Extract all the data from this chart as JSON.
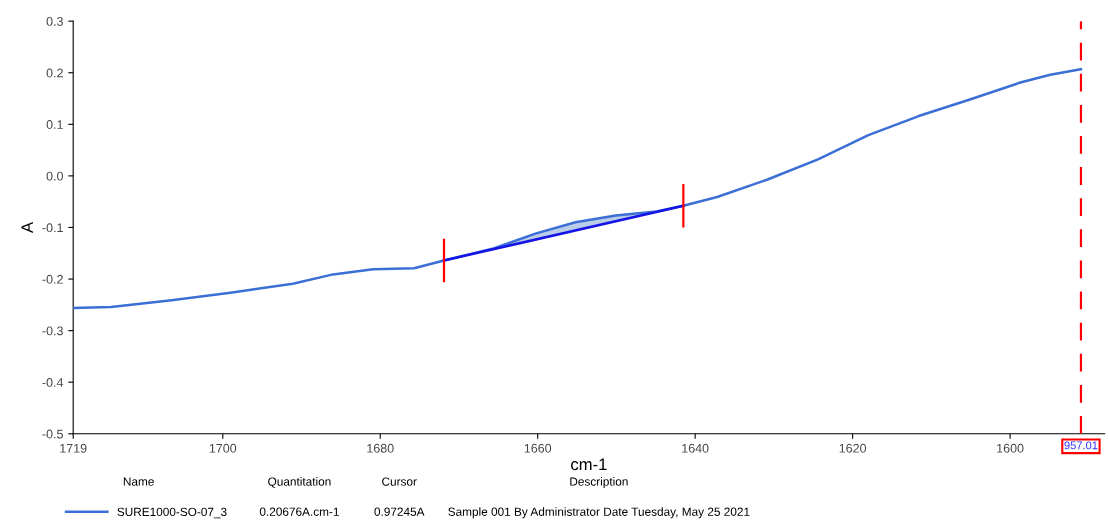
{
  "chart_data": {
    "type": "line",
    "xlabel": "cm-1",
    "ylabel": "A",
    "xlim": [
      1719,
      1588
    ],
    "xticks": [
      1719,
      1700,
      1680,
      1660,
      1640,
      1620,
      1600
    ],
    "ylim": [
      -0.5,
      0.3
    ],
    "yticks": [
      0.3,
      0.2,
      0.1,
      {
        "value": 0,
        "label": "0.0"
      },
      -0.1,
      -0.2,
      -0.3,
      -0.4,
      -0.5
    ],
    "grid": false,
    "legend": "bottom left",
    "series": [
      {
        "name": "SURE1000-SO-07_3",
        "color": "#3b6fd6",
        "x": [
          1719,
          1714.2,
          1706.5,
          1698.8,
          1691.1,
          1686,
          1680.9,
          1675.7,
          1671.9,
          1665.5,
          1660.3,
          1655.2,
          1650.1,
          1644.9,
          1641.5,
          1637.2,
          1630.8,
          1624.4,
          1618.0,
          1611.6,
          1605.1,
          1598.7,
          1594.9,
          1591.0
        ],
        "values": [
          -0.256,
          -0.254,
          -0.241,
          -0.226,
          -0.209,
          -0.191,
          -0.181,
          -0.179,
          -0.164,
          -0.14,
          -0.112,
          -0.09,
          -0.077,
          -0.069,
          -0.058,
          -0.041,
          -0.007,
          0.032,
          0.079,
          0.116,
          0.148,
          0.181,
          0.196,
          0.207
        ],
        "lower": [
          null,
          null,
          null,
          null,
          null,
          null,
          null,
          null,
          -0.164,
          -0.142,
          -0.124,
          -0.106,
          -0.088,
          -0.07,
          -0.058,
          null,
          null,
          null,
          null,
          null,
          null,
          null,
          null,
          null
        ],
        "upper": [
          null,
          null,
          null,
          null,
          null,
          null,
          null,
          null,
          -0.164,
          -0.14,
          -0.112,
          -0.09,
          -0.077,
          -0.069,
          -0.058,
          null,
          null,
          null,
          null,
          null,
          null,
          null,
          null,
          null
        ]
      },
      {
        "type": "line",
        "color": "#1414e6",
        "x": [
          1671.9,
          1641.5
        ],
        "values": [
          -0.164,
          -0.058
        ]
      }
    ],
    "ref_lines": [
      {
        "axis": "x",
        "value": 1671.9,
        "color": "#ff0000",
        "line_style": "solid"
      },
      {
        "axis": "x",
        "value": 1641.5,
        "color": "#ff0000",
        "line_style": "solid"
      },
      {
        "axis": "x",
        "value": 1591.0,
        "color": "#ff0000",
        "line_style": "dashed"
      }
    ],
    "annotations": [
      "957.01",
      "Name",
      "Quantitation",
      "Cursor",
      "Description",
      "0.20676A.cm-1",
      "0.97245A",
      "Sample 001 By Administrator Date Tuesday, May 25 2021"
    ]
  }
}
